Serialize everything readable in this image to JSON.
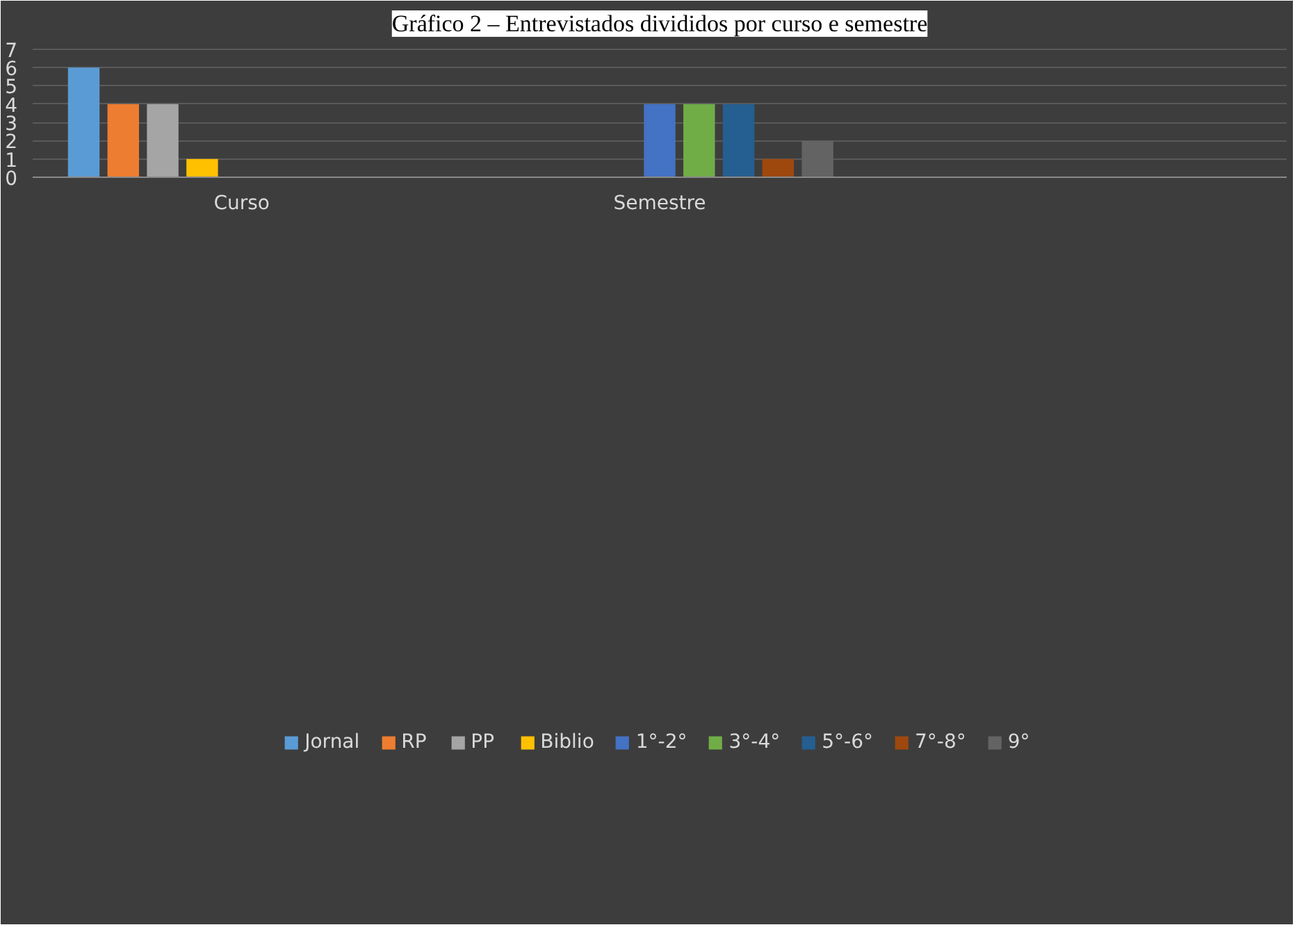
{
  "chart_data": {
    "type": "bar",
    "title": "Gráfico 2 – Entrevistados divididos por curso e semestre",
    "categories": [
      "Curso",
      "Semestre",
      null
    ],
    "ylim": [
      0,
      7.3
    ],
    "yticks": [
      0,
      1,
      2,
      3,
      4,
      5,
      6,
      7
    ],
    "grid": "y",
    "legend": "bottom",
    "series": [
      {
        "name": "Jornal",
        "color": "#5b9bd5",
        "values": [
          6,
          null,
          null
        ]
      },
      {
        "name": "RP",
        "color": "#ed7d31",
        "values": [
          4,
          null,
          null
        ]
      },
      {
        "name": "PP",
        "color": "#a5a5a5",
        "values": [
          4,
          null,
          null
        ]
      },
      {
        "name": "Biblio",
        "color": "#ffc000",
        "values": [
          1,
          null,
          null
        ]
      },
      {
        "name": "1°-2°",
        "color": "#4472c4",
        "values": [
          null,
          4,
          null
        ]
      },
      {
        "name": "3°-4°",
        "color": "#70ad47",
        "values": [
          null,
          4,
          null
        ]
      },
      {
        "name": "5°-6°",
        "color": "#255e91",
        "values": [
          null,
          4,
          null
        ]
      },
      {
        "name": "7°-8°",
        "color": "#9e480e",
        "values": [
          null,
          1,
          null
        ]
      },
      {
        "name": "9°",
        "color": "#636363",
        "values": [
          null,
          2,
          null
        ]
      }
    ]
  }
}
